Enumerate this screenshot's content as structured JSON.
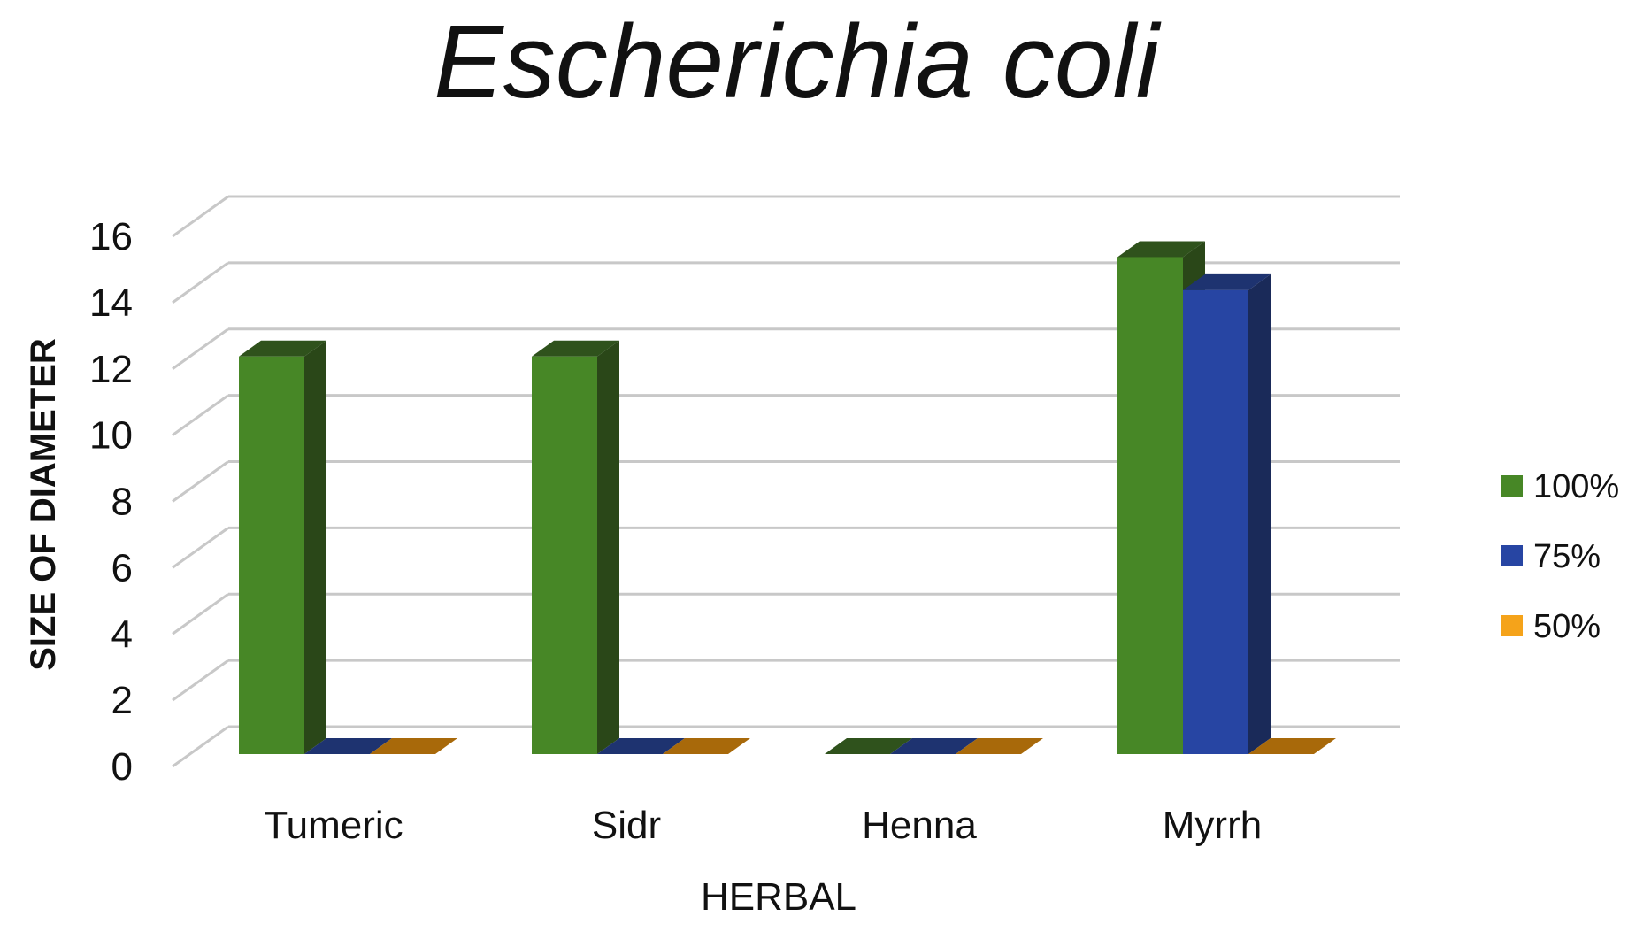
{
  "chart_data": {
    "type": "bar",
    "title": "Escherichia coli",
    "xlabel": "HERBAL",
    "ylabel": "SIZE OF DIAMETER",
    "categories": [
      "Tumeric",
      "Sidr",
      "Henna",
      "Myrrh"
    ],
    "series": [
      {
        "name": "100%",
        "values": [
          12,
          12,
          0,
          15
        ],
        "color": "#478726",
        "side_color": "#2a4718",
        "top_color": "#2f521c"
      },
      {
        "name": "75%",
        "values": [
          0,
          0,
          0,
          14
        ],
        "color": "#2745a3",
        "side_color": "#1a2a59",
        "top_color": "#1e3370"
      },
      {
        "name": "50%",
        "values": [
          0,
          0,
          0,
          0
        ],
        "color": "#f5a31a",
        "side_color": "#8a5a0d",
        "top_color": "#a8690a"
      }
    ],
    "ylim": [
      0,
      16
    ],
    "yticks": [
      "0",
      "2",
      "4",
      "6",
      "8",
      "10",
      "12",
      "14",
      "16"
    ],
    "grid": true,
    "legend_position": "right",
    "style": "3d-clustered-column"
  }
}
